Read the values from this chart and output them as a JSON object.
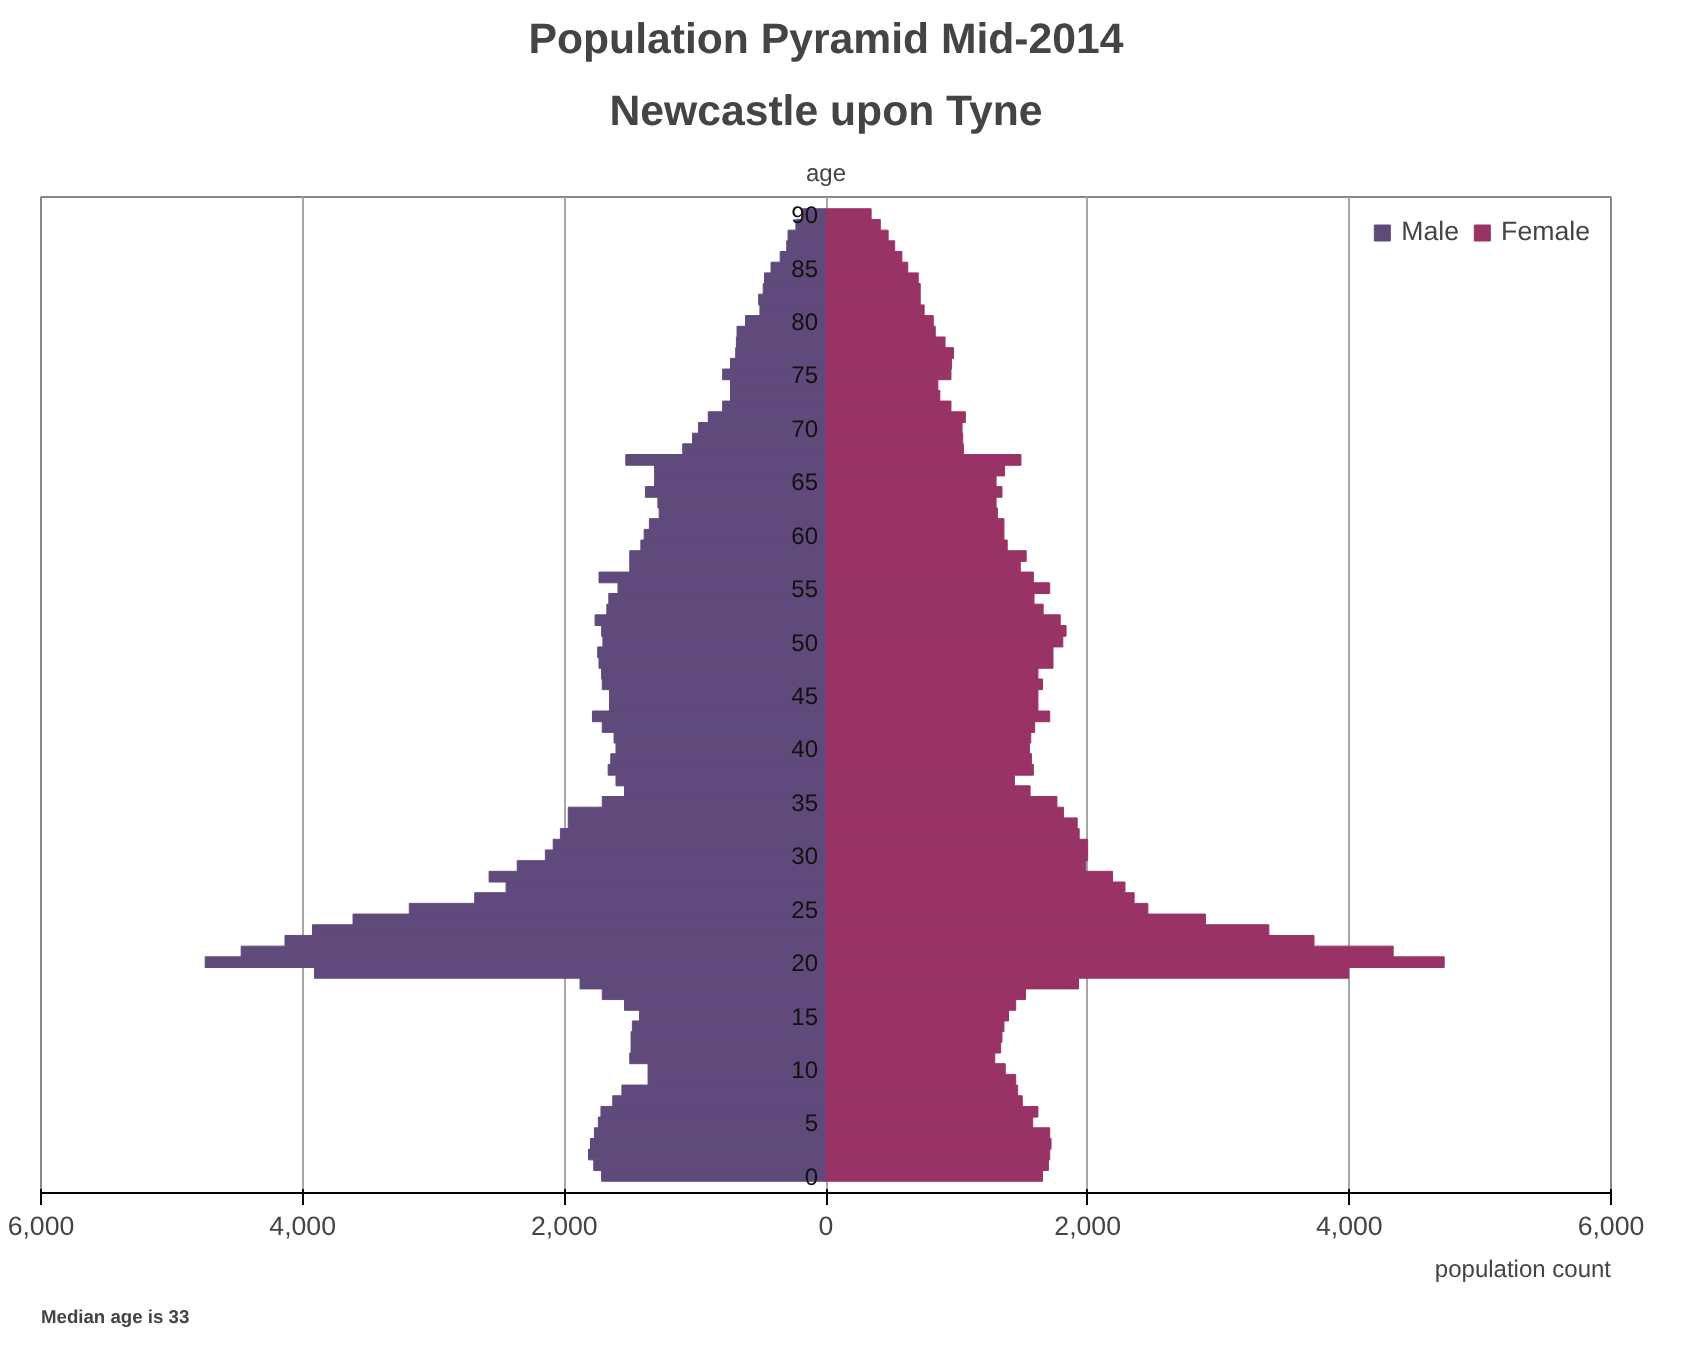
{
  "chart_data": {
    "type": "bar",
    "orientation": "horizontal",
    "stacked": true,
    "title": "Population Pyramid Mid-2014",
    "subtitle": "Newcastle upon Tyne",
    "xlabel": "population count",
    "ylabel": "age",
    "annotations": [
      "Median age is 33"
    ],
    "categories": [
      "90",
      null,
      null,
      null,
      null,
      "85",
      null,
      null,
      null,
      null,
      "80",
      null,
      null,
      null,
      null,
      "75",
      null,
      null,
      null,
      null,
      "70",
      null,
      null,
      null,
      null,
      "65",
      null,
      null,
      null,
      null,
      "60",
      null,
      null,
      null,
      null,
      "55",
      null,
      null,
      null,
      null,
      "50",
      null,
      null,
      null,
      null,
      "45",
      null,
      null,
      null,
      null,
      "40",
      null,
      null,
      null,
      null,
      "35",
      null,
      null,
      null,
      null,
      "30",
      null,
      null,
      null,
      null,
      "25",
      null,
      null,
      null,
      null,
      "20",
      null,
      null,
      null,
      null,
      "15",
      null,
      null,
      null,
      null,
      "10",
      null,
      null,
      null,
      null,
      "5",
      null,
      null,
      null,
      null,
      "0"
    ],
    "series": [
      {
        "name": "Male",
        "color": "#604a7b",
        "values": [
          -180,
          -230,
          -290,
          -300,
          -350,
          -420,
          -470,
          -480,
          -515,
          -505,
          -615,
          -680,
          -685,
          -690,
          -730,
          -790,
          -730,
          -730,
          -790,
          -900,
          -975,
          -1020,
          -1095,
          -1530,
          -1310,
          -1310,
          -1380,
          -1285,
          -1275,
          -1350,
          -1390,
          -1415,
          -1500,
          -1500,
          -1735,
          -1590,
          -1660,
          -1675,
          -1765,
          -1715,
          -1705,
          -1745,
          -1735,
          -1715,
          -1710,
          -1655,
          -1655,
          -1785,
          -1710,
          -1620,
          -1605,
          -1645,
          -1665,
          -1605,
          -1540,
          -1710,
          -1970,
          -1970,
          -2030,
          -2085,
          -2145,
          -2360,
          -2575,
          -2445,
          -2685,
          -3185,
          -3615,
          -3925,
          -4135,
          -4470,
          -4745,
          -3910,
          -1880,
          -1710,
          -1540,
          -1425,
          -1480,
          -1490,
          -1490,
          -1500,
          -1360,
          -1360,
          -1560,
          -1630,
          -1720,
          -1740,
          -1770,
          -1800,
          -1815,
          -1775,
          -1715
        ]
      },
      {
        "name": "Female",
        "color": "#993366",
        "values": [
          345,
          415,
          475,
          525,
          580,
          625,
          705,
          720,
          720,
          750,
          820,
          835,
          910,
          975,
          960,
          955,
          855,
          870,
          955,
          1065,
          1040,
          1045,
          1050,
          1490,
          1365,
          1300,
          1345,
          1300,
          1310,
          1360,
          1360,
          1385,
          1530,
          1485,
          1585,
          1710,
          1590,
          1660,
          1790,
          1835,
          1810,
          1735,
          1735,
          1620,
          1655,
          1620,
          1620,
          1710,
          1595,
          1565,
          1555,
          1570,
          1585,
          1440,
          1560,
          1765,
          1815,
          1920,
          1935,
          2000,
          2000,
          1985,
          2190,
          2285,
          2355,
          2460,
          2900,
          3385,
          3730,
          4335,
          4725,
          3995,
          1930,
          1525,
          1450,
          1395,
          1360,
          1345,
          1335,
          1290,
          1370,
          1450,
          1465,
          1500,
          1620,
          1580,
          1710,
          1720,
          1710,
          1700,
          1655
        ]
      }
    ],
    "xlim": [
      -6000,
      6000
    ],
    "xticks": [
      {
        "value": -6000,
        "label": "6,000"
      },
      {
        "value": -4000,
        "label": "4,000"
      },
      {
        "value": -2000,
        "label": "2,000"
      },
      0,
      {
        "value": 2000,
        "label": "2,000"
      },
      {
        "value": 4000,
        "label": "4,000"
      },
      {
        "value": 6000,
        "label": "6,000"
      }
    ],
    "grid": "x",
    "legend": "top right"
  }
}
